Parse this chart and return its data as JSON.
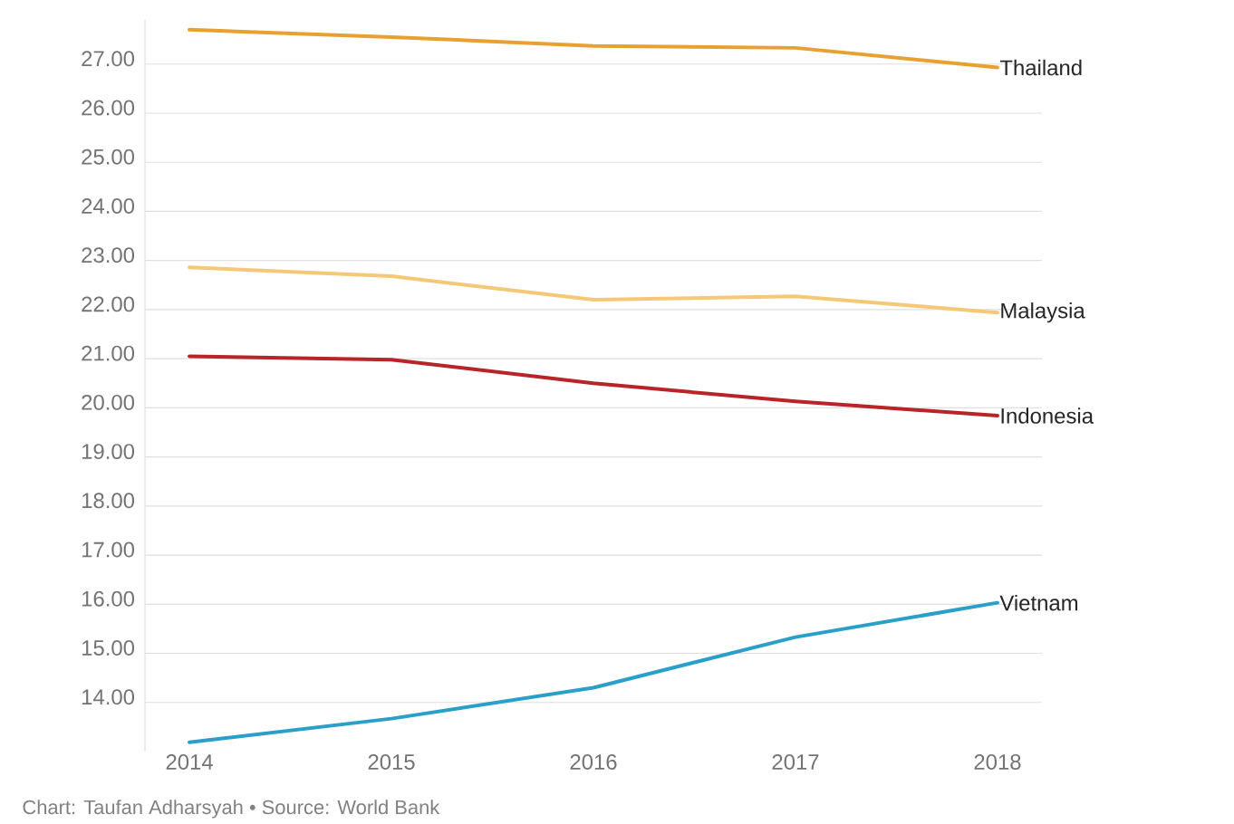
{
  "chart_data": {
    "type": "line",
    "categories": [
      "2014",
      "2015",
      "2016",
      "2017",
      "2018"
    ],
    "series": [
      {
        "name": "Thailand",
        "color": "#e8a030",
        "values": [
          27.7,
          27.55,
          27.37,
          27.33,
          26.93
        ]
      },
      {
        "name": "Malaysia",
        "color": "#f5c878",
        "values": [
          22.86,
          22.68,
          22.2,
          22.27,
          21.94
        ]
      },
      {
        "name": "Indonesia",
        "color": "#b82428",
        "values": [
          21.05,
          20.98,
          20.5,
          20.13,
          19.84
        ]
      },
      {
        "name": "Vietnam",
        "color": "#2a9fc9",
        "values": [
          13.19,
          13.67,
          14.3,
          15.33,
          16.03
        ]
      }
    ],
    "yticks": [
      {
        "value": 14,
        "label": "14.00"
      },
      {
        "value": 15,
        "label": "15.00"
      },
      {
        "value": 16,
        "label": "16.00"
      },
      {
        "value": 17,
        "label": "17.00"
      },
      {
        "value": 18,
        "label": "18.00"
      },
      {
        "value": 19,
        "label": "19.00"
      },
      {
        "value": 20,
        "label": "20.00"
      },
      {
        "value": 21,
        "label": "21.00"
      },
      {
        "value": 22,
        "label": "22.00"
      },
      {
        "value": 23,
        "label": "23.00"
      },
      {
        "value": 24,
        "label": "24.00"
      },
      {
        "value": 25,
        "label": "25.00"
      },
      {
        "value": 26,
        "label": "26.00"
      },
      {
        "value": 27,
        "label": "27.00"
      }
    ],
    "ylim": [
      13.0,
      27.9
    ],
    "grid": "y",
    "legend": false,
    "annotations": [
      "Chart: Taufan Adharsyah • Source: World Bank"
    ]
  }
}
